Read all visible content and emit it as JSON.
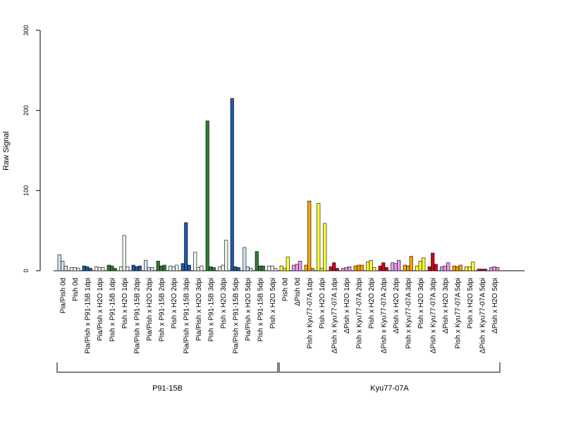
{
  "chart_data": {
    "type": "bar",
    "ylabel": "Raw Signal",
    "ylim": [
      0,
      300
    ],
    "yticks": [
      0,
      100,
      200,
      300
    ],
    "grid": false,
    "legend": "none",
    "bar_style": "grouped, 3 replicate bars per category, black outline",
    "groups": [
      {
        "label": "P91-15B",
        "first_category": 0,
        "last_category": 17
      },
      {
        "label": "Kyu77-07A",
        "first_category": 18,
        "last_category": 35
      }
    ],
    "categories": [
      "Pia/Pish 0d",
      "Pish 0d",
      "Pia/Pish x P91-15B 1dpi",
      "Pia/Pish x H2O 1dpi",
      "Pish x P91-15B 1dpi",
      "Pish x H2O 1dpi",
      "Pia/Pish x P91-15B 2dpi",
      "Pia/Pish x H2O 2dpi",
      "Pish x P91-15B 2dpi",
      "Pish x H2O 2dpi",
      "Pia/Pish x P91-15B 3dpi",
      "Pia/Pish x H2O 3dpi",
      "Pish x P91-15B 3dpi",
      "Pish x H2O 3dpi",
      "Pia/Pish x P91-15B 5dpi",
      "Pia/Pish x H2O 5dpi",
      "Pish x P91-15B 5dpi",
      "Pish x H2O 5dpi",
      "Pish 0d",
      "ΔPish 0d",
      "Pish x Kyu77-07A 1dpi",
      "Pish x H2O 1dpi",
      "ΔPish x Kyu77-07A 1dpi",
      "ΔPish x H2O 1dpi",
      "Pish x Kyu77-07A 2dpi",
      "Pish x H2O 2dpi",
      "ΔPish x Kyu77-07A 2dpi",
      "ΔPish x H2O 2dpi",
      "Pish x Kyu77-07A 3dpi",
      "Pish x H2O 3dpi",
      "ΔPish x Kyu77-07A 3dpi",
      "ΔPish x H2O 3dpi",
      "Pish x Kyu77-07A 5dpi",
      "Pish x H2O 5dpi",
      "ΔPish x Kyu77-07A 5dpi",
      "ΔPish x H2O 5dpi"
    ],
    "colors": [
      "#cfe2f3",
      "#f4f4f4",
      "#1f5aa6",
      "#f4f4f4",
      "#2e7d32",
      "#e8f5e9",
      "#1f5aa6",
      "#cfe2f3",
      "#2e7d32",
      "#e8f5e9",
      "#1f5aa6",
      "#f4f4f4",
      "#2e7d32",
      "#e8f5e9",
      "#1f5aa6",
      "#cfe2f3",
      "#2e7d32",
      "#f4f4f4",
      "#ffff33",
      "#ee99ee",
      "#ffa500",
      "#ffff33",
      "#d00020",
      "#ee99ee",
      "#ffa500",
      "#ffff33",
      "#d00020",
      "#ee99ee",
      "#ffa500",
      "#ffff33",
      "#d00020",
      "#ee99ee",
      "#ffa500",
      "#ffff33",
      "#d00020",
      "#ee99ee"
    ],
    "values": [
      [
        20,
        12,
        6
      ],
      [
        4,
        4,
        3
      ],
      [
        6,
        5,
        3
      ],
      [
        5,
        4,
        4
      ],
      [
        7,
        6,
        3
      ],
      [
        5,
        44,
        5
      ],
      [
        7,
        5,
        6
      ],
      [
        13,
        4,
        4
      ],
      [
        12,
        6,
        7
      ],
      [
        6,
        5,
        7
      ],
      [
        9,
        60,
        7
      ],
      [
        23,
        4,
        6
      ],
      [
        187,
        5,
        4
      ],
      [
        5,
        7,
        38
      ],
      [
        215,
        5,
        4
      ],
      [
        29,
        5,
        3
      ],
      [
        24,
        6,
        6
      ],
      [
        6,
        6,
        3
      ],
      [
        6,
        3,
        17
      ],
      [
        7,
        8,
        12
      ],
      [
        7,
        87,
        3
      ],
      [
        84,
        3,
        59
      ],
      [
        5,
        10,
        3
      ],
      [
        3,
        4,
        5
      ],
      [
        6,
        7,
        7
      ],
      [
        11,
        13,
        4
      ],
      [
        6,
        10,
        4
      ],
      [
        10,
        9,
        13
      ],
      [
        7,
        6,
        18
      ],
      [
        6,
        12,
        16
      ],
      [
        5,
        22,
        8
      ],
      [
        5,
        6,
        10
      ],
      [
        6,
        5,
        7
      ],
      [
        5,
        5,
        11
      ],
      [
        2,
        2,
        2
      ],
      [
        4,
        5,
        4
      ]
    ]
  }
}
